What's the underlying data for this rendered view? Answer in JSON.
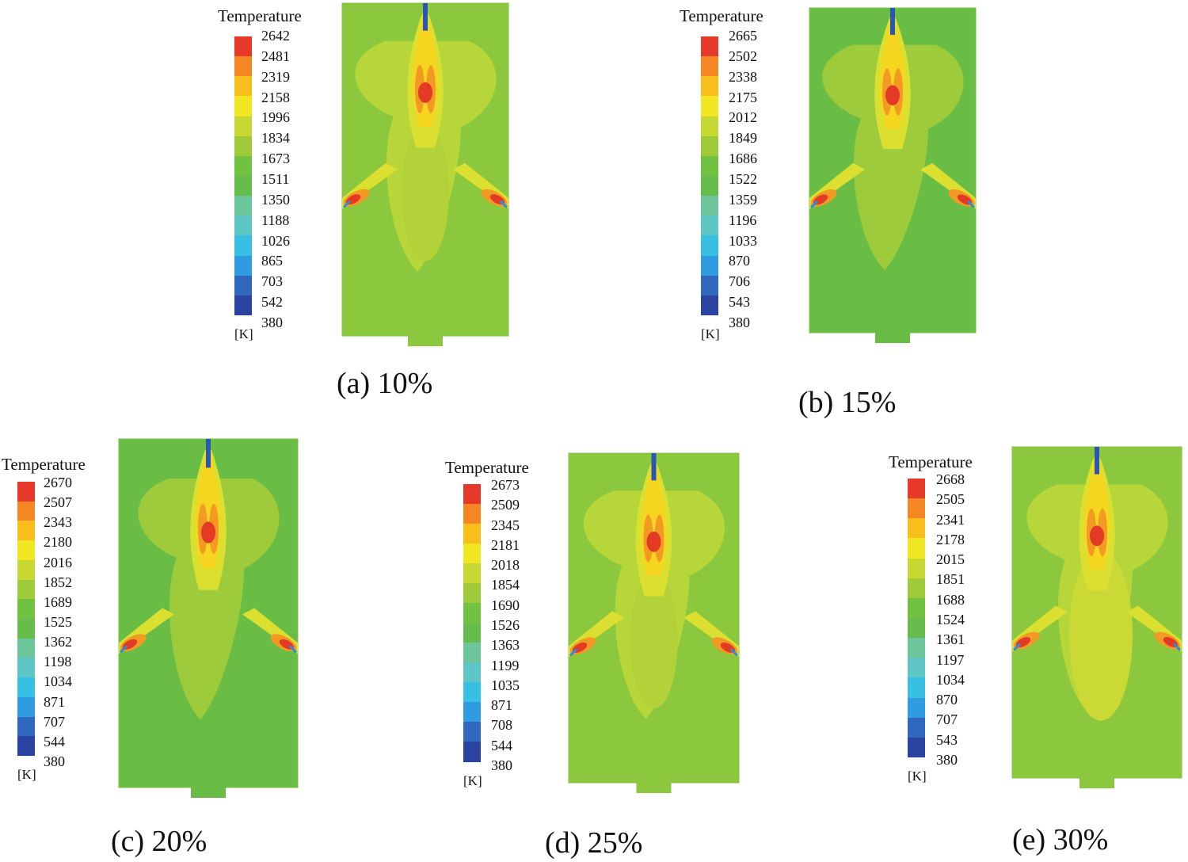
{
  "colors": {
    "scale": [
      "#2a43a0",
      "#2f68bd",
      "#2f9be0",
      "#38c0e4",
      "#5ec7c6",
      "#6dc59b",
      "#66bd4b",
      "#72c242",
      "#9fcb3a",
      "#c8d832",
      "#f1e622",
      "#f8bf1c",
      "#f48623",
      "#e6392a"
    ],
    "background_field": "#8cc83d",
    "ambient_low": "#6abd44",
    "mid_plume": "#b7d63a",
    "warm": "#dbe030",
    "hot_yellow": "#f6d51f",
    "hot_orange": "#f39a24",
    "hot_core": "#e33a26",
    "inlet": "#2d56b2"
  },
  "panels": [
    {
      "legend_title": "Temperature",
      "ticks": [
        "2642",
        "2481",
        "2319",
        "2158",
        "1996",
        "1834",
        "1673",
        "1511",
        "1350",
        "1188",
        "1026",
        "865",
        "703",
        "542",
        "380"
      ],
      "unit": "[K]",
      "caption": "(a) 10%",
      "variant": "mid"
    },
    {
      "legend_title": "Temperature",
      "ticks": [
        "2665",
        "2502",
        "2338",
        "2175",
        "2012",
        "1849",
        "1686",
        "1522",
        "1359",
        "1196",
        "1033",
        "870",
        "706",
        "543",
        "380"
      ],
      "unit": "[K]",
      "caption": "(b) 15%",
      "variant": "cool"
    },
    {
      "legend_title": "Temperature",
      "ticks": [
        "2670",
        "2507",
        "2343",
        "2180",
        "2016",
        "1852",
        "1689",
        "1525",
        "1362",
        "1198",
        "1034",
        "871",
        "707",
        "544",
        "380"
      ],
      "unit": "[K]",
      "caption": "(c) 20%",
      "variant": "cool"
    },
    {
      "legend_title": "Temperature",
      "ticks": [
        "2673",
        "2509",
        "2345",
        "2181",
        "2018",
        "1854",
        "1690",
        "1526",
        "1363",
        "1199",
        "1035",
        "871",
        "708",
        "544",
        "380"
      ],
      "unit": "[K]",
      "caption": "(d) 25%",
      "variant": "mid"
    },
    {
      "legend_title": "Temperature",
      "ticks": [
        "2668",
        "2505",
        "2341",
        "2178",
        "2015",
        "1851",
        "1688",
        "1524",
        "1361",
        "1197",
        "1034",
        "870",
        "707",
        "543",
        "380"
      ],
      "unit": "[K]",
      "caption": "(e) 30%",
      "variant": "warm"
    }
  ]
}
